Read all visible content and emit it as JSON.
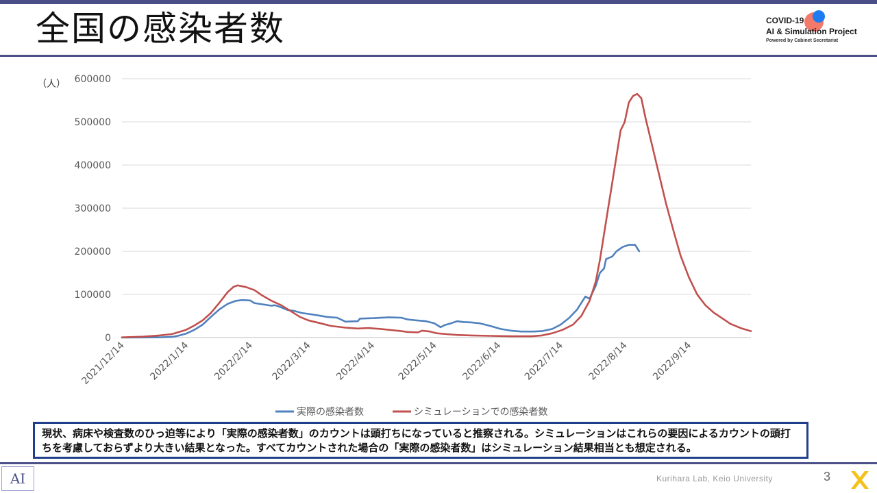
{
  "slide": {
    "title": "全国の感染者数",
    "page_number": "3",
    "footer": "Kurihara Lab, Keio University",
    "note": "現状、病床や検査数のひっ迫等により「実際の感染者数」のカウントは頭打ちになっていると推察される。シミュレーションはこれらの要因によるカウントの頭打ちを考慮しておらずより大きい結果となった。すべてカウントされた場合の「実際の感染者数」はシミュレーション結果相当とも想定される。",
    "lab_logo": "AI",
    "corner_icon": "x-mark-icon",
    "accent_color": "#4a4f88",
    "box_border_color": "#1f3f8a"
  },
  "logo": {
    "line1": "COVID-19",
    "line2": "AI & Simulation Project",
    "line3": "Powered by Cabinet Secretariat"
  },
  "chart_data": {
    "type": "line",
    "unit_label": "（人）",
    "ylim": [
      0,
      600000
    ],
    "yticks": [
      "0",
      "100000",
      "200000",
      "300000",
      "400000",
      "500000",
      "600000"
    ],
    "xlim": [
      "2021-12-14",
      "2022-10-14"
    ],
    "xticks": [
      "2021/12/14",
      "2022/1/14",
      "2022/2/14",
      "2022/3/14",
      "2022/4/14",
      "2022/5/14",
      "2022/6/14",
      "2022/7/14",
      "2022/8/14",
      "2022/9/14"
    ],
    "grid": true,
    "legend_position": "bottom",
    "series": [
      {
        "name": "実際の感染者数",
        "color": "#4f81bd",
        "points": [
          [
            "2021-12-14",
            200
          ],
          [
            "2021-12-24",
            300
          ],
          [
            "2022-01-01",
            500
          ],
          [
            "2022-01-07",
            1500
          ],
          [
            "2022-01-10",
            4000
          ],
          [
            "2022-01-14",
            9000
          ],
          [
            "2022-01-18",
            18000
          ],
          [
            "2022-01-22",
            30000
          ],
          [
            "2022-01-26",
            48000
          ],
          [
            "2022-01-30",
            65000
          ],
          [
            "2022-02-03",
            78000
          ],
          [
            "2022-02-07",
            85000
          ],
          [
            "2022-02-10",
            87000
          ],
          [
            "2022-02-14",
            86000
          ],
          [
            "2022-02-16",
            80000
          ],
          [
            "2022-02-20",
            77000
          ],
          [
            "2022-02-24",
            74000
          ],
          [
            "2022-02-26",
            75000
          ],
          [
            "2022-03-01",
            70000
          ],
          [
            "2022-03-04",
            64000
          ],
          [
            "2022-03-07",
            62000
          ],
          [
            "2022-03-11",
            57000
          ],
          [
            "2022-03-14",
            55000
          ],
          [
            "2022-03-18",
            52000
          ],
          [
            "2022-03-23",
            48000
          ],
          [
            "2022-03-28",
            46000
          ],
          [
            "2022-04-01",
            37000
          ],
          [
            "2022-04-07",
            38000
          ],
          [
            "2022-04-08",
            44000
          ],
          [
            "2022-04-15",
            45000
          ],
          [
            "2022-04-22",
            47000
          ],
          [
            "2022-04-28",
            46000
          ],
          [
            "2022-05-01",
            42000
          ],
          [
            "2022-05-05",
            40000
          ],
          [
            "2022-05-10",
            38000
          ],
          [
            "2022-05-14",
            33000
          ],
          [
            "2022-05-17",
            24000
          ],
          [
            "2022-05-19",
            29000
          ],
          [
            "2022-05-22",
            33000
          ],
          [
            "2022-05-25",
            38000
          ],
          [
            "2022-05-28",
            36000
          ],
          [
            "2022-06-01",
            35000
          ],
          [
            "2022-06-05",
            33000
          ],
          [
            "2022-06-10",
            27000
          ],
          [
            "2022-06-15",
            20000
          ],
          [
            "2022-06-20",
            16000
          ],
          [
            "2022-06-25",
            14000
          ],
          [
            "2022-07-01",
            14000
          ],
          [
            "2022-07-05",
            15000
          ],
          [
            "2022-07-10",
            20000
          ],
          [
            "2022-07-14",
            30000
          ],
          [
            "2022-07-18",
            45000
          ],
          [
            "2022-07-22",
            65000
          ],
          [
            "2022-07-26",
            95000
          ],
          [
            "2022-07-28",
            90000
          ],
          [
            "2022-07-31",
            120000
          ],
          [
            "2022-08-02",
            150000
          ],
          [
            "2022-08-04",
            160000
          ],
          [
            "2022-08-05",
            182000
          ],
          [
            "2022-08-08",
            188000
          ],
          [
            "2022-08-10",
            200000
          ],
          [
            "2022-08-13",
            210000
          ],
          [
            "2022-08-16",
            215000
          ],
          [
            "2022-08-19",
            215000
          ],
          [
            "2022-08-21",
            200000
          ]
        ]
      },
      {
        "name": "シミュレーションでの感染者数",
        "color": "#c0504d",
        "points": [
          [
            "2021-12-14",
            500
          ],
          [
            "2021-12-24",
            2000
          ],
          [
            "2022-01-01",
            5000
          ],
          [
            "2022-01-07",
            8000
          ],
          [
            "2022-01-10",
            12000
          ],
          [
            "2022-01-14",
            18000
          ],
          [
            "2022-01-18",
            28000
          ],
          [
            "2022-01-22",
            40000
          ],
          [
            "2022-01-26",
            57000
          ],
          [
            "2022-01-30",
            80000
          ],
          [
            "2022-02-03",
            105000
          ],
          [
            "2022-02-06",
            118000
          ],
          [
            "2022-02-08",
            121000
          ],
          [
            "2022-02-12",
            117000
          ],
          [
            "2022-02-16",
            110000
          ],
          [
            "2022-02-20",
            97000
          ],
          [
            "2022-02-24",
            86000
          ],
          [
            "2022-03-01",
            75000
          ],
          [
            "2022-03-06",
            60000
          ],
          [
            "2022-03-10",
            48000
          ],
          [
            "2022-03-14",
            40000
          ],
          [
            "2022-03-20",
            33000
          ],
          [
            "2022-03-25",
            27000
          ],
          [
            "2022-04-01",
            23000
          ],
          [
            "2022-04-07",
            21000
          ],
          [
            "2022-04-12",
            22000
          ],
          [
            "2022-04-18",
            20000
          ],
          [
            "2022-04-22",
            18000
          ],
          [
            "2022-04-28",
            15000
          ],
          [
            "2022-05-01",
            13000
          ],
          [
            "2022-05-06",
            12000
          ],
          [
            "2022-05-08",
            16000
          ],
          [
            "2022-05-12",
            14000
          ],
          [
            "2022-05-15",
            10000
          ],
          [
            "2022-05-20",
            8000
          ],
          [
            "2022-05-25",
            6000
          ],
          [
            "2022-06-01",
            5000
          ],
          [
            "2022-06-10",
            4000
          ],
          [
            "2022-06-20",
            3000
          ],
          [
            "2022-06-30",
            3000
          ],
          [
            "2022-07-05",
            5000
          ],
          [
            "2022-07-10",
            10000
          ],
          [
            "2022-07-15",
            18000
          ],
          [
            "2022-07-20",
            30000
          ],
          [
            "2022-07-24",
            50000
          ],
          [
            "2022-07-28",
            85000
          ],
          [
            "2022-07-31",
            130000
          ],
          [
            "2022-08-02",
            180000
          ],
          [
            "2022-08-04",
            240000
          ],
          [
            "2022-08-06",
            300000
          ],
          [
            "2022-08-08",
            360000
          ],
          [
            "2022-08-10",
            420000
          ],
          [
            "2022-08-12",
            480000
          ],
          [
            "2022-08-14",
            500000
          ],
          [
            "2022-08-16",
            545000
          ],
          [
            "2022-08-18",
            560000
          ],
          [
            "2022-08-20",
            565000
          ],
          [
            "2022-08-22",
            555000
          ],
          [
            "2022-08-24",
            510000
          ],
          [
            "2022-08-27",
            450000
          ],
          [
            "2022-08-30",
            390000
          ],
          [
            "2022-09-03",
            310000
          ],
          [
            "2022-09-07",
            240000
          ],
          [
            "2022-09-10",
            190000
          ],
          [
            "2022-09-14",
            140000
          ],
          [
            "2022-09-18",
            100000
          ],
          [
            "2022-09-22",
            75000
          ],
          [
            "2022-09-26",
            58000
          ],
          [
            "2022-09-30",
            45000
          ],
          [
            "2022-10-04",
            32000
          ],
          [
            "2022-10-09",
            22000
          ],
          [
            "2022-10-14",
            15000
          ]
        ]
      }
    ]
  }
}
